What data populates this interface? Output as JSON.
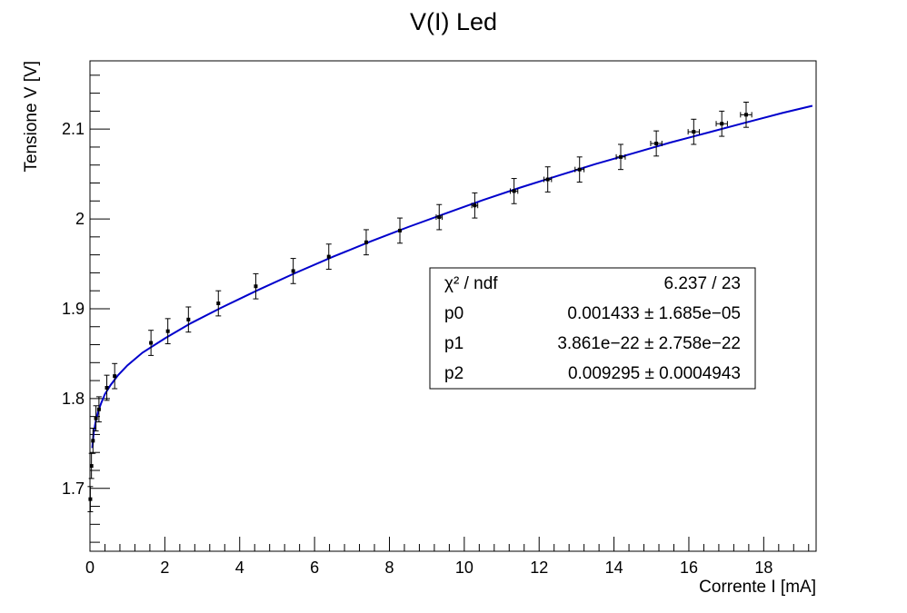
{
  "chart_data": {
    "type": "scatter",
    "title": "V(I) Led",
    "xlabel": "Corrente I [mA]",
    "ylabel": "Tensione V [V]",
    "xlim": [
      0,
      19.4
    ],
    "ylim": [
      1.63,
      2.176
    ],
    "x_ticks": [
      0,
      2,
      4,
      6,
      8,
      10,
      12,
      14,
      16,
      18
    ],
    "x_tick_labels": [
      "0",
      "2",
      "4",
      "6",
      "8",
      "10",
      "12",
      "14",
      "16",
      "18"
    ],
    "y_ticks": [
      1.7,
      1.8,
      1.9,
      2.0,
      2.1
    ],
    "y_tick_labels": [
      "1.7",
      "1.8",
      "1.9",
      "2",
      "2.1"
    ],
    "grid": false,
    "series": [
      {
        "kind": "points-with-errors",
        "color": "#000000",
        "points": [
          {
            "x": 0.01,
            "y": 1.688,
            "ex": 0.0,
            "ey": 0.014
          },
          {
            "x": 0.04,
            "y": 1.725,
            "ex": 0.0,
            "ey": 0.014
          },
          {
            "x": 0.08,
            "y": 1.753,
            "ex": 0.0,
            "ey": 0.014
          },
          {
            "x": 0.16,
            "y": 1.778,
            "ex": 0.0,
            "ey": 0.014
          },
          {
            "x": 0.24,
            "y": 1.788,
            "ex": 0.0,
            "ey": 0.014
          },
          {
            "x": 0.45,
            "y": 1.812,
            "ex": 0.0,
            "ey": 0.014
          },
          {
            "x": 0.66,
            "y": 1.825,
            "ex": 0.0,
            "ey": 0.014
          },
          {
            "x": 1.63,
            "y": 1.862,
            "ex": 0.0,
            "ey": 0.014
          },
          {
            "x": 2.08,
            "y": 1.875,
            "ex": 0.0,
            "ey": 0.014
          },
          {
            "x": 2.63,
            "y": 1.888,
            "ex": 0.0,
            "ey": 0.014
          },
          {
            "x": 3.43,
            "y": 1.906,
            "ex": 0.0,
            "ey": 0.014
          },
          {
            "x": 4.43,
            "y": 1.925,
            "ex": 0.0,
            "ey": 0.014
          },
          {
            "x": 5.43,
            "y": 1.942,
            "ex": 0.0,
            "ey": 0.014
          },
          {
            "x": 6.38,
            "y": 1.958,
            "ex": 0.0,
            "ey": 0.014
          },
          {
            "x": 7.38,
            "y": 1.974,
            "ex": 0.0,
            "ey": 0.014
          },
          {
            "x": 8.28,
            "y": 1.987,
            "ex": 0.0,
            "ey": 0.014
          },
          {
            "x": 9.33,
            "y": 2.002,
            "ex": 0.08,
            "ey": 0.014
          },
          {
            "x": 10.28,
            "y": 2.015,
            "ex": 0.08,
            "ey": 0.014
          },
          {
            "x": 11.33,
            "y": 2.031,
            "ex": 0.1,
            "ey": 0.014
          },
          {
            "x": 12.23,
            "y": 2.044,
            "ex": 0.1,
            "ey": 0.014
          },
          {
            "x": 13.08,
            "y": 2.055,
            "ex": 0.12,
            "ey": 0.014
          },
          {
            "x": 14.18,
            "y": 2.069,
            "ex": 0.12,
            "ey": 0.014
          },
          {
            "x": 15.13,
            "y": 2.084,
            "ex": 0.15,
            "ey": 0.014
          },
          {
            "x": 16.13,
            "y": 2.097,
            "ex": 0.15,
            "ey": 0.014
          },
          {
            "x": 16.88,
            "y": 2.106,
            "ex": 0.15,
            "ey": 0.014
          },
          {
            "x": 17.53,
            "y": 2.116,
            "ex": 0.15,
            "ey": 0.014
          }
        ]
      },
      {
        "kind": "fit-curve",
        "color": "#0000cc",
        "points": [
          {
            "x": 0.06,
            "y": 1.745
          },
          {
            "x": 0.1,
            "y": 1.762
          },
          {
            "x": 0.15,
            "y": 1.774
          },
          {
            "x": 0.22,
            "y": 1.786
          },
          {
            "x": 0.3,
            "y": 1.795
          },
          {
            "x": 0.4,
            "y": 1.805
          },
          {
            "x": 0.55,
            "y": 1.815
          },
          {
            "x": 0.75,
            "y": 1.826
          },
          {
            "x": 1.0,
            "y": 1.837
          },
          {
            "x": 1.4,
            "y": 1.851
          },
          {
            "x": 2.0,
            "y": 1.867
          },
          {
            "x": 2.7,
            "y": 1.884
          },
          {
            "x": 3.5,
            "y": 1.901
          },
          {
            "x": 4.5,
            "y": 1.921
          },
          {
            "x": 5.5,
            "y": 1.94
          },
          {
            "x": 6.5,
            "y": 1.958
          },
          {
            "x": 7.5,
            "y": 1.975
          },
          {
            "x": 8.5,
            "y": 1.991
          },
          {
            "x": 9.5,
            "y": 2.006
          },
          {
            "x": 10.5,
            "y": 2.021
          },
          {
            "x": 11.5,
            "y": 2.035
          },
          {
            "x": 12.5,
            "y": 2.048
          },
          {
            "x": 13.5,
            "y": 2.061
          },
          {
            "x": 14.5,
            "y": 2.073
          },
          {
            "x": 15.5,
            "y": 2.085
          },
          {
            "x": 16.5,
            "y": 2.096
          },
          {
            "x": 17.5,
            "y": 2.107
          },
          {
            "x": 18.5,
            "y": 2.118
          },
          {
            "x": 19.3,
            "y": 2.126
          }
        ]
      }
    ],
    "stats_box": {
      "rows": [
        {
          "label": "χ² / ndf",
          "value": "6.237 / 23"
        },
        {
          "label": "p0",
          "value": "0.001433 ± 1.685e−05"
        },
        {
          "label": "p1",
          "value": "3.861e−22 ± 2.758e−22"
        },
        {
          "label": "p2",
          "value": "0.009295 ± 0.0004943"
        }
      ]
    }
  }
}
